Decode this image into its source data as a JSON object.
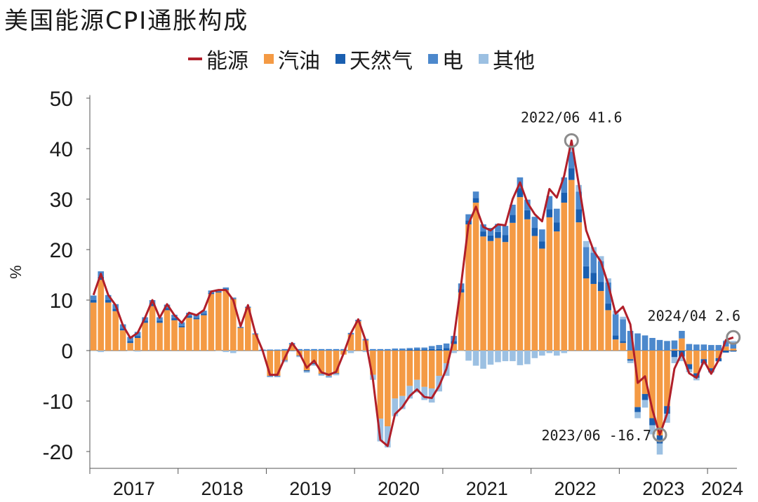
{
  "title": "美国能源CPI通胀构成",
  "legend": [
    {
      "label": "能源",
      "kind": "line",
      "color": "#b01f2a"
    },
    {
      "label": "汽油",
      "kind": "box",
      "color": "#f49a44"
    },
    {
      "label": "天然气",
      "kind": "box",
      "color": "#1a5fb0"
    },
    {
      "label": "电",
      "kind": "box",
      "color": "#4c88cc"
    },
    {
      "label": "其他",
      "kind": "box",
      "color": "#9cc0e2"
    }
  ],
  "chart_data": {
    "type": "bar",
    "ylabel": "%",
    "ylim": [
      -22,
      52
    ],
    "yticks": [
      50,
      40,
      30,
      20,
      10,
      0,
      -10,
      -20
    ],
    "ytick_labels": [
      "50",
      "40",
      "30",
      "20",
      "10",
      "0",
      "-10",
      "-20"
    ],
    "x_start": "2017/01",
    "year_labels": [
      "2017",
      "2018",
      "2019",
      "2020",
      "2021",
      "2022",
      "2023",
      "2024"
    ],
    "months": [
      "2017/01",
      "2017/02",
      "2017/03",
      "2017/04",
      "2017/05",
      "2017/06",
      "2017/07",
      "2017/08",
      "2017/09",
      "2017/10",
      "2017/11",
      "2017/12",
      "2018/01",
      "2018/02",
      "2018/03",
      "2018/04",
      "2018/05",
      "2018/06",
      "2018/07",
      "2018/08",
      "2018/09",
      "2018/10",
      "2018/11",
      "2018/12",
      "2019/01",
      "2019/02",
      "2019/03",
      "2019/04",
      "2019/05",
      "2019/06",
      "2019/07",
      "2019/08",
      "2019/09",
      "2019/10",
      "2019/11",
      "2019/12",
      "2020/01",
      "2020/02",
      "2020/03",
      "2020/04",
      "2020/05",
      "2020/06",
      "2020/07",
      "2020/08",
      "2020/09",
      "2020/10",
      "2020/11",
      "2020/12",
      "2021/01",
      "2021/02",
      "2021/03",
      "2021/04",
      "2021/05",
      "2021/06",
      "2021/07",
      "2021/08",
      "2021/09",
      "2021/10",
      "2021/11",
      "2021/12",
      "2022/01",
      "2022/02",
      "2022/03",
      "2022/04",
      "2022/05",
      "2022/06",
      "2022/07",
      "2022/08",
      "2022/09",
      "2022/10",
      "2022/11",
      "2022/12",
      "2023/01",
      "2023/02",
      "2023/03",
      "2023/04",
      "2023/05",
      "2023/06",
      "2023/07",
      "2023/08",
      "2023/09",
      "2023/10",
      "2023/11",
      "2023/12",
      "2024/01",
      "2024/02",
      "2024/03",
      "2024/04"
    ],
    "series": [
      {
        "name": "能源",
        "kind": "line",
        "color": "#b01f2a",
        "values": [
          11,
          15.2,
          11,
          9,
          5,
          2.5,
          3.5,
          6.5,
          10,
          6.5,
          9.2,
          7,
          5.5,
          7.5,
          7,
          8,
          11.7,
          12,
          12,
          10,
          4.8,
          9,
          3.5,
          0,
          -4.8,
          -4.8,
          -1.5,
          1.5,
          -0.5,
          -3.4,
          -2,
          -4.3,
          -4.8,
          -4.2,
          -0.6,
          3.4,
          6.2,
          2,
          -5.8,
          -17.7,
          -18.9,
          -12.6,
          -11.2,
          -9,
          -7.7,
          -9.2,
          -9.4,
          -7,
          -3.6,
          2.4,
          13.2,
          25.1,
          28.5,
          24.5,
          23.8,
          25,
          24.8,
          30,
          33.3,
          29.3,
          27,
          25.6,
          32,
          30.3,
          34.6,
          41.6,
          32.9,
          23.8,
          19.8,
          17.6,
          13.1,
          7.3,
          8.7,
          5.2,
          -6.4,
          -5.1,
          -11.7,
          -16.7,
          -12.5,
          -3.6,
          -0.5,
          -4.5,
          -5.4,
          -2,
          -4.6,
          -1.9,
          2.1,
          2.6
        ]
      },
      {
        "name": "汽油",
        "kind": "bar",
        "color": "#f49a44",
        "values": [
          9.5,
          14,
          9.5,
          7.8,
          4,
          1.5,
          2.5,
          5.5,
          8.8,
          5.5,
          8,
          6,
          4.6,
          6.5,
          6.2,
          7,
          11.2,
          11.5,
          12,
          10.2,
          4.5,
          8.5,
          3.2,
          0,
          -5,
          -5,
          -1.9,
          1.2,
          -1,
          -3.9,
          -2.5,
          -4.6,
          -5,
          -4.5,
          -0.8,
          3.2,
          5.8,
          2,
          -4.8,
          -13.5,
          -15,
          -9.5,
          -9,
          -7,
          -5.8,
          -7.2,
          -7.5,
          -5,
          -2.5,
          1.3,
          11.5,
          25,
          29.3,
          22.6,
          21.7,
          22.3,
          21.5,
          25.3,
          30.4,
          26,
          22.7,
          20.2,
          26.4,
          23.6,
          29.3,
          33.8,
          25.4,
          14.3,
          13.2,
          11.8,
          8,
          2.2,
          1.5,
          -1.7,
          -11.2,
          -8.6,
          -13.4,
          -16.8,
          -11,
          0.3,
          2.4,
          -2.7,
          -4.5,
          -1.7,
          -3.5,
          -1.5,
          0.8,
          0.4
        ]
      },
      {
        "name": "天然气",
        "kind": "bar",
        "color": "#1a5fb0",
        "values": [
          0.5,
          0.6,
          0.5,
          0.5,
          0.4,
          0.4,
          0.4,
          0.4,
          0.5,
          0.4,
          0.4,
          0.4,
          0.3,
          0.3,
          0.3,
          0.3,
          0.2,
          0.2,
          0.2,
          0.1,
          0.1,
          0.1,
          0,
          0,
          -0.1,
          -0.1,
          -0.1,
          -0.1,
          -0.1,
          -0.2,
          -0.2,
          -0.1,
          -0.1,
          -0.1,
          0,
          0,
          0,
          0,
          0,
          0,
          0,
          0.1,
          0.1,
          0.2,
          0.2,
          0.2,
          0.3,
          0.3,
          0.5,
          0.6,
          0.7,
          0.8,
          0.9,
          1,
          1.1,
          1.2,
          1.4,
          1.6,
          1.8,
          1.8,
          1.6,
          1.4,
          1.6,
          1.8,
          2,
          2.3,
          2.6,
          2.4,
          2.2,
          1.8,
          1.3,
          0.8,
          0.4,
          -0.3,
          -1,
          -1.2,
          -1.4,
          -1.6,
          -1.5,
          -1.3,
          -1.2,
          -1,
          -0.9,
          -0.8,
          -0.7,
          -0.6,
          -0.4,
          -0.2
        ]
      },
      {
        "name": "电",
        "kind": "bar",
        "color": "#4c88cc",
        "values": [
          0.9,
          1.1,
          1,
          0.9,
          0.8,
          0.8,
          0.8,
          0.7,
          0.7,
          0.7,
          0.7,
          0.7,
          0.7,
          0.7,
          0.6,
          0.6,
          0.5,
          0.4,
          0.3,
          0.2,
          0.1,
          0.1,
          0.2,
          0.2,
          0.2,
          0.2,
          0.3,
          0.3,
          0.3,
          0.3,
          0.3,
          0.3,
          0.3,
          0.3,
          0.3,
          0.3,
          0.3,
          0.3,
          0.3,
          0.3,
          0.3,
          0.3,
          0.3,
          0.3,
          0.4,
          0.4,
          0.6,
          0.8,
          0.9,
          1,
          1.1,
          1.2,
          1.3,
          1.4,
          1.5,
          1.6,
          1.8,
          2,
          2.1,
          2.1,
          2.2,
          2.4,
          2.6,
          2.7,
          3,
          3.3,
          3.5,
          3.8,
          4,
          4.1,
          4.2,
          4.2,
          4.3,
          3.9,
          3.4,
          3,
          2.5,
          2.1,
          1.9,
          1.7,
          1.5,
          1.3,
          1.2,
          1.2,
          1.1,
          1.1,
          1.1,
          1.2
        ]
      },
      {
        "name": "其他",
        "kind": "bar",
        "color": "#9cc0e2",
        "values": [
          -0.1,
          -0.3,
          0,
          0,
          0,
          -0.1,
          -0.2,
          0,
          0,
          0,
          0,
          0,
          0,
          0,
          0,
          0,
          0,
          -0.1,
          -0.3,
          -0.5,
          0,
          0,
          0,
          0,
          -0.2,
          -0.2,
          -0.3,
          0,
          -0.2,
          -0.3,
          -0.3,
          -0.3,
          -0.3,
          -0.3,
          0,
          -0.5,
          0,
          -0.3,
          -1,
          -4.5,
          -4.2,
          -3.5,
          -2.6,
          -2.5,
          -2.5,
          -2.6,
          -2.8,
          -3.1,
          -2.5,
          -0.5,
          -0.1,
          -2,
          -3,
          -3.6,
          -2.8,
          -2.3,
          -2.1,
          -2.1,
          -2.9,
          -2.7,
          -1.5,
          -1,
          -0.5,
          -1,
          -0.5,
          1.2,
          1.3,
          1.2,
          1.1,
          1,
          0.8,
          0.7,
          0.5,
          -0.5,
          -1.2,
          -1.5,
          -1.8,
          -2.2,
          -1.8,
          -1.2,
          -0.9,
          -0.6,
          -0.5,
          -0.3,
          -0.2,
          -0.1,
          0.1,
          0.3
        ]
      }
    ],
    "annotations": [
      {
        "label": "2022/06  41.6",
        "x": "2022/06",
        "y": 41.6
      },
      {
        "label": "2023/06  -16.7",
        "x": "2023/06",
        "y": -16.7
      },
      {
        "label": "2024/04  2.6",
        "x": "2024/04",
        "y": 2.6
      }
    ]
  }
}
